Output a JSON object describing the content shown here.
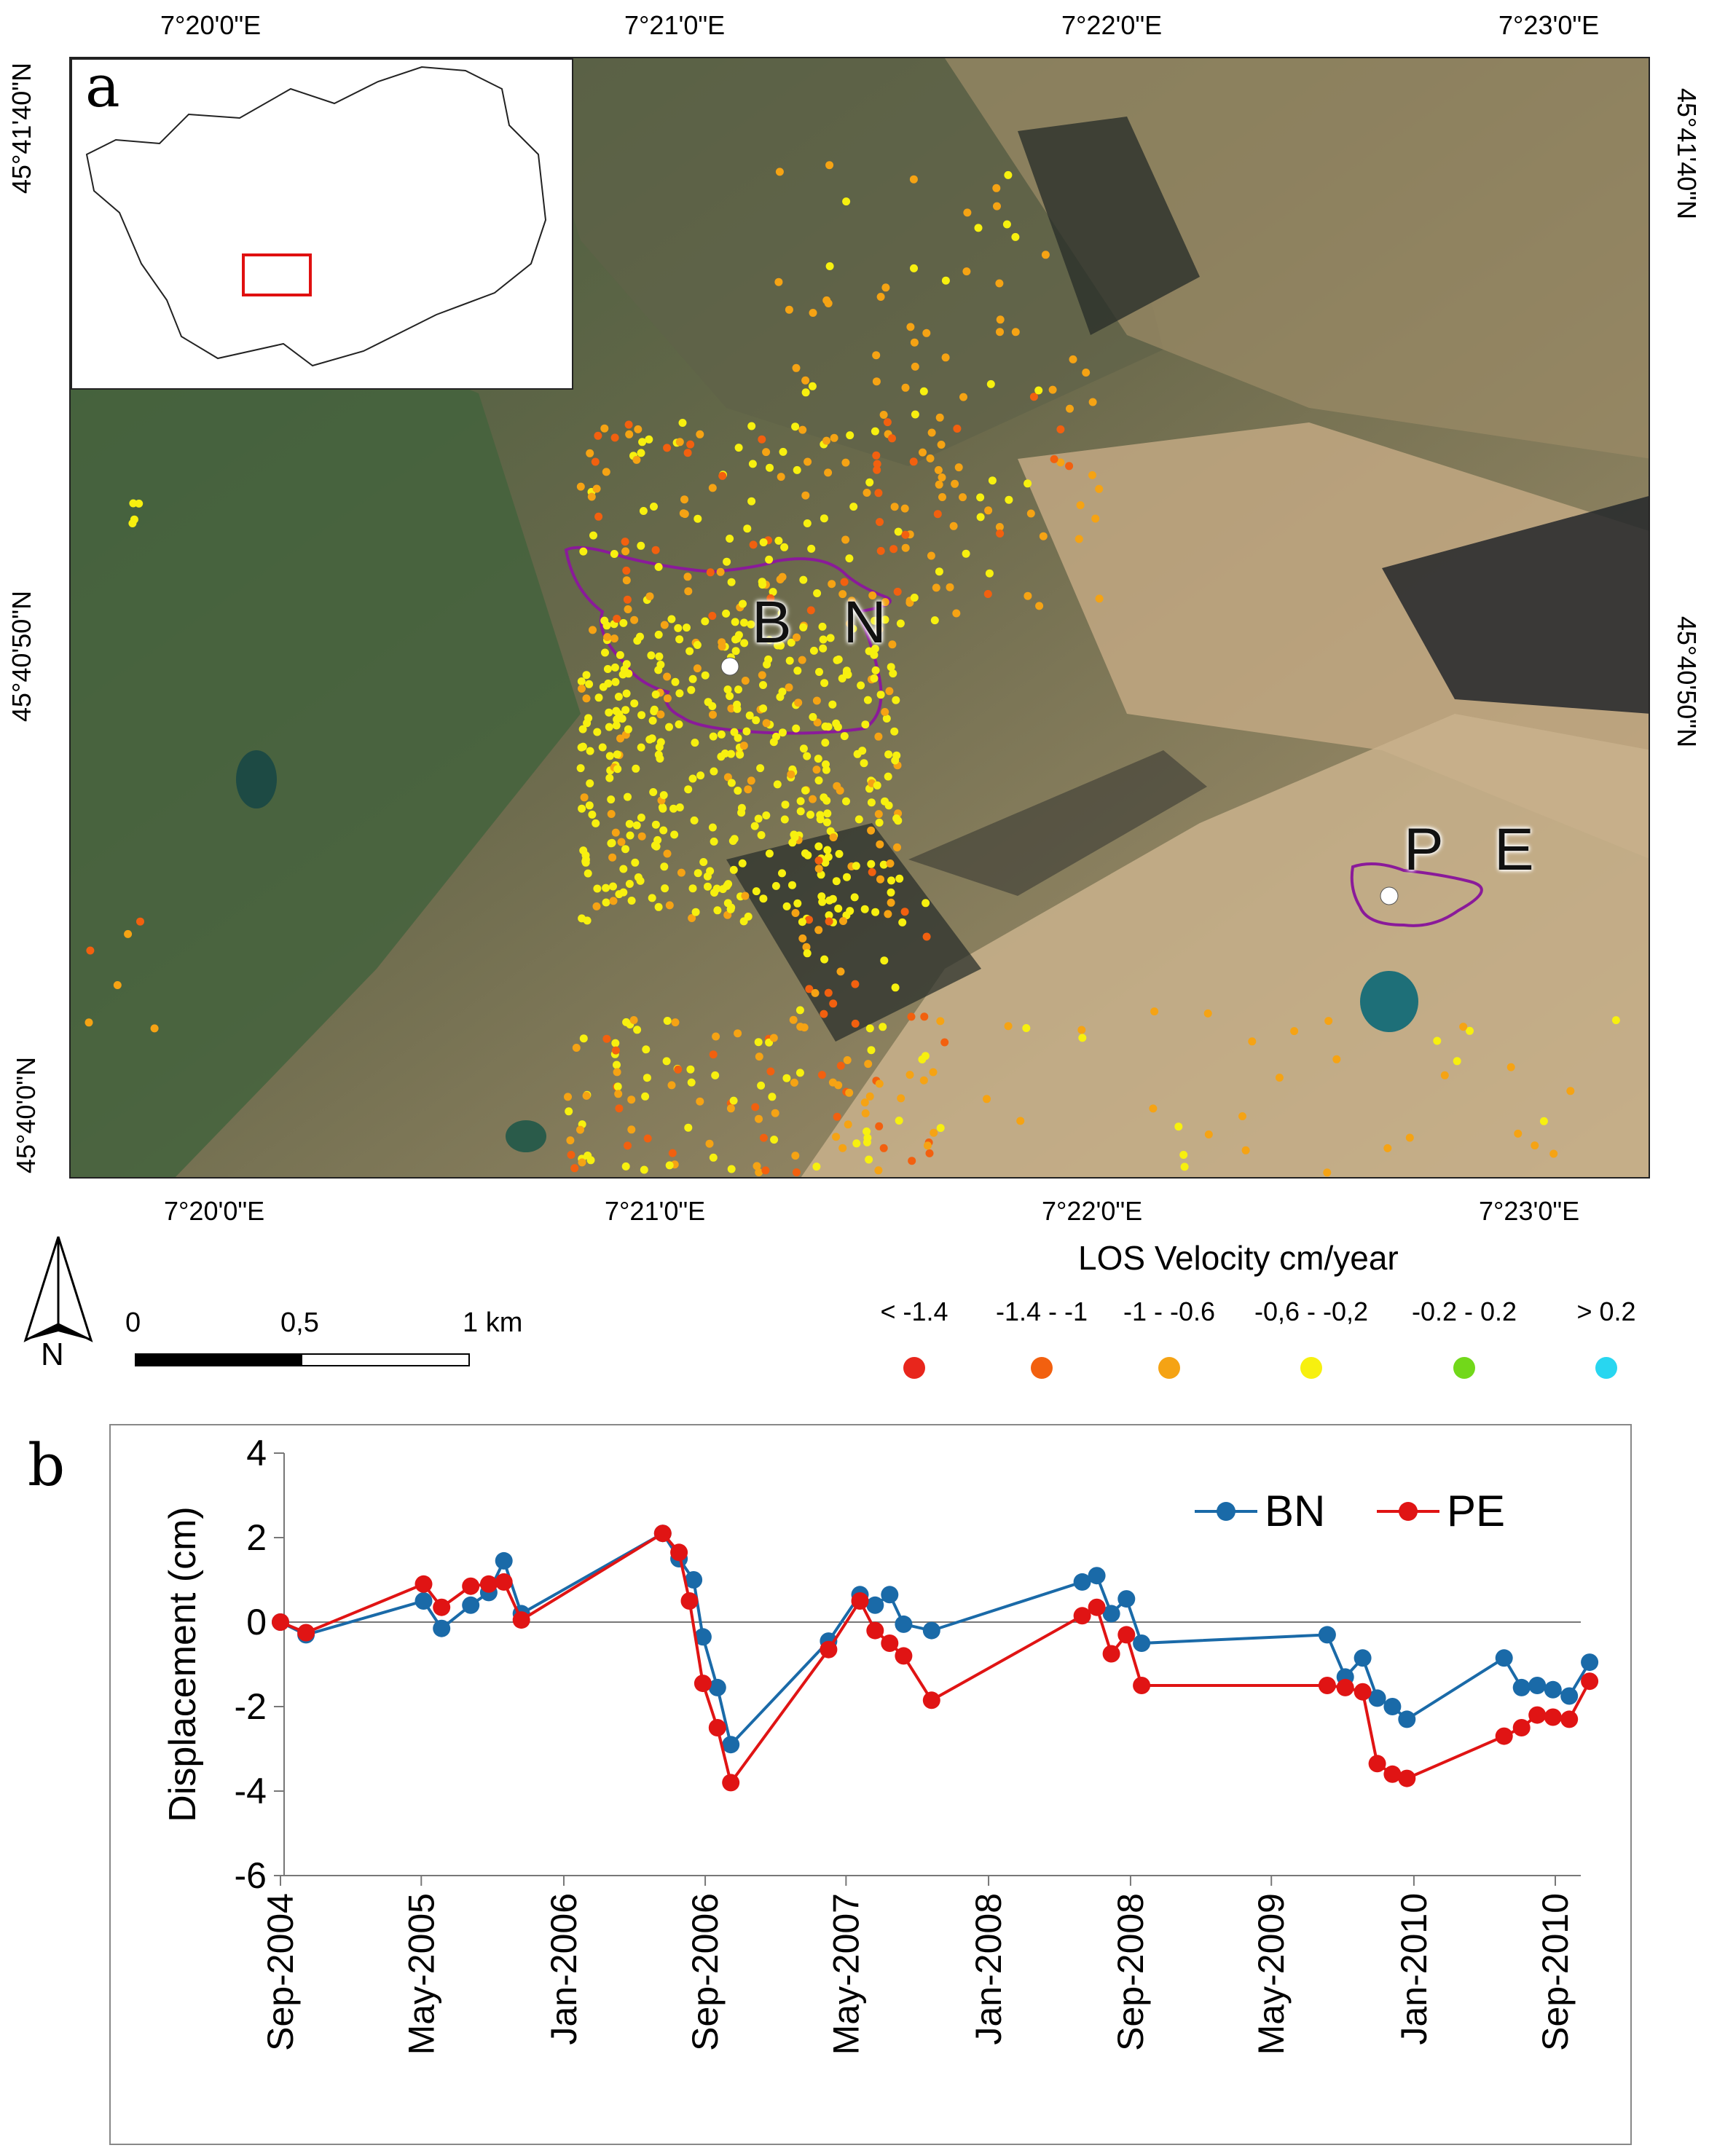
{
  "panel_a": {
    "letter": "a",
    "coords": {
      "top": [
        "7°20'0\"E",
        "7°21'0\"E",
        "7°22'0\"E",
        "7°23'0\"E"
      ],
      "bottom": [
        "7°20'0\"E",
        "7°21'0\"E",
        "7°22'0\"E",
        "7°23'0\"E"
      ],
      "left": [
        "45°41'40\"N",
        "45°40'50\"N",
        "45°40'0\"N"
      ],
      "right": [
        "45°41'40\"N",
        "45°40'50\"N"
      ]
    },
    "sites": [
      {
        "label": "BN",
        "x_label": "B N"
      },
      {
        "label": "PE",
        "x_label": "P E"
      }
    ],
    "site_labels": {
      "bn": "B N",
      "pe": "P E"
    },
    "north_label": "N",
    "scale_bar": {
      "labels": [
        "0",
        "0,5",
        "1 km"
      ]
    },
    "legend": {
      "title": "LOS Velocity cm/year",
      "classes": [
        {
          "range": "< -1.4",
          "color": "#e8261c"
        },
        {
          "range": "-1.4 - -1",
          "color": "#f2600f"
        },
        {
          "range": "-1 - -0.6",
          "color": "#f5a314"
        },
        {
          "range": "-0,6 - -0,2",
          "color": "#f7f00f"
        },
        {
          "range": "-0.2 - 0.2",
          "color": "#72d81a"
        },
        {
          "range": "> 0.2",
          "color": "#28d6f0"
        }
      ]
    },
    "colors": {
      "outline": "#8a1a9a",
      "inset_box": "#e01010"
    }
  },
  "panel_b": {
    "letter": "b"
  },
  "chart_data": {
    "type": "line",
    "ylabel": "Displacement (cm)",
    "xlabel": "",
    "ylim": [
      -6,
      4
    ],
    "yticks": [
      -6,
      -4,
      -2,
      0,
      2,
      4
    ],
    "xticks": [
      {
        "label": "Sep-2004",
        "date": "2004-09-01"
      },
      {
        "label": "May-2005",
        "date": "2005-05-01"
      },
      {
        "label": "Jan-2006",
        "date": "2006-01-01"
      },
      {
        "label": "Sep-2006",
        "date": "2006-09-01"
      },
      {
        "label": "May-2007",
        "date": "2007-05-01"
      },
      {
        "label": "Jan-2008",
        "date": "2008-01-01"
      },
      {
        "label": "Sep-2008",
        "date": "2008-09-01"
      },
      {
        "label": "May-2009",
        "date": "2009-05-01"
      },
      {
        "label": "Jan-2010",
        "date": "2010-01-01"
      },
      {
        "label": "Sep-2010",
        "date": "2010-09-01"
      }
    ],
    "legend_position": "top-right",
    "series": [
      {
        "name": "BN",
        "color": "#1a6aa8",
        "points": [
          [
            "2004-09-01",
            0.0
          ],
          [
            "2004-10-15",
            -0.3
          ],
          [
            "2005-05-05",
            0.5
          ],
          [
            "2005-06-05",
            -0.15
          ],
          [
            "2005-07-25",
            0.4
          ],
          [
            "2005-08-25",
            0.7
          ],
          [
            "2005-09-20",
            1.45
          ],
          [
            "2005-10-20",
            0.2
          ],
          [
            "2006-06-20",
            2.1
          ],
          [
            "2006-07-18",
            1.5
          ],
          [
            "2006-08-12",
            1.0
          ],
          [
            "2006-08-28",
            -0.35
          ],
          [
            "2006-09-22",
            -1.55
          ],
          [
            "2006-10-15",
            -2.9
          ],
          [
            "2007-04-01",
            -0.45
          ],
          [
            "2007-05-25",
            0.65
          ],
          [
            "2007-06-20",
            0.4
          ],
          [
            "2007-07-15",
            0.65
          ],
          [
            "2007-08-08",
            -0.05
          ],
          [
            "2007-09-25",
            -0.2
          ],
          [
            "2008-06-10",
            0.95
          ],
          [
            "2008-07-05",
            1.1
          ],
          [
            "2008-07-30",
            0.2
          ],
          [
            "2008-08-25",
            0.55
          ],
          [
            "2008-09-20",
            -0.5
          ],
          [
            "2009-08-05",
            -0.3
          ],
          [
            "2009-09-05",
            -1.3
          ],
          [
            "2009-10-05",
            -0.85
          ],
          [
            "2009-10-30",
            -1.8
          ],
          [
            "2009-11-25",
            -2.0
          ],
          [
            "2009-12-20",
            -2.3
          ],
          [
            "2010-06-05",
            -0.85
          ],
          [
            "2010-07-05",
            -1.55
          ],
          [
            "2010-08-01",
            -1.5
          ],
          [
            "2010-08-28",
            -1.6
          ],
          [
            "2010-09-25",
            -1.75
          ],
          [
            "2010-10-30",
            -0.95
          ]
        ]
      },
      {
        "name": "PE",
        "color": "#e01414",
        "points": [
          [
            "2004-09-01",
            0.0
          ],
          [
            "2004-10-15",
            -0.25
          ],
          [
            "2005-05-05",
            0.9
          ],
          [
            "2005-06-05",
            0.35
          ],
          [
            "2005-07-25",
            0.85
          ],
          [
            "2005-08-25",
            0.9
          ],
          [
            "2005-09-20",
            0.95
          ],
          [
            "2005-10-20",
            0.05
          ],
          [
            "2006-06-20",
            2.1
          ],
          [
            "2006-07-18",
            1.65
          ],
          [
            "2006-08-05",
            0.5
          ],
          [
            "2006-08-28",
            -1.45
          ],
          [
            "2006-09-22",
            -2.5
          ],
          [
            "2006-10-15",
            -3.8
          ],
          [
            "2007-04-01",
            -0.65
          ],
          [
            "2007-05-25",
            0.5
          ],
          [
            "2007-06-20",
            -0.2
          ],
          [
            "2007-07-15",
            -0.5
          ],
          [
            "2007-08-08",
            -0.8
          ],
          [
            "2007-09-25",
            -1.85
          ],
          [
            "2008-06-10",
            0.15
          ],
          [
            "2008-07-05",
            0.35
          ],
          [
            "2008-07-30",
            -0.75
          ],
          [
            "2008-08-25",
            -0.3
          ],
          [
            "2008-09-20",
            -1.5
          ],
          [
            "2009-08-05",
            -1.5
          ],
          [
            "2009-09-05",
            -1.55
          ],
          [
            "2009-10-05",
            -1.65
          ],
          [
            "2009-10-30",
            -3.35
          ],
          [
            "2009-11-25",
            -3.6
          ],
          [
            "2009-12-20",
            -3.7
          ],
          [
            "2010-06-05",
            -2.7
          ],
          [
            "2010-07-05",
            -2.5
          ],
          [
            "2010-08-01",
            -2.2
          ],
          [
            "2010-08-28",
            -2.25
          ],
          [
            "2010-09-25",
            -2.3
          ],
          [
            "2010-10-30",
            -1.4
          ]
        ]
      }
    ]
  }
}
